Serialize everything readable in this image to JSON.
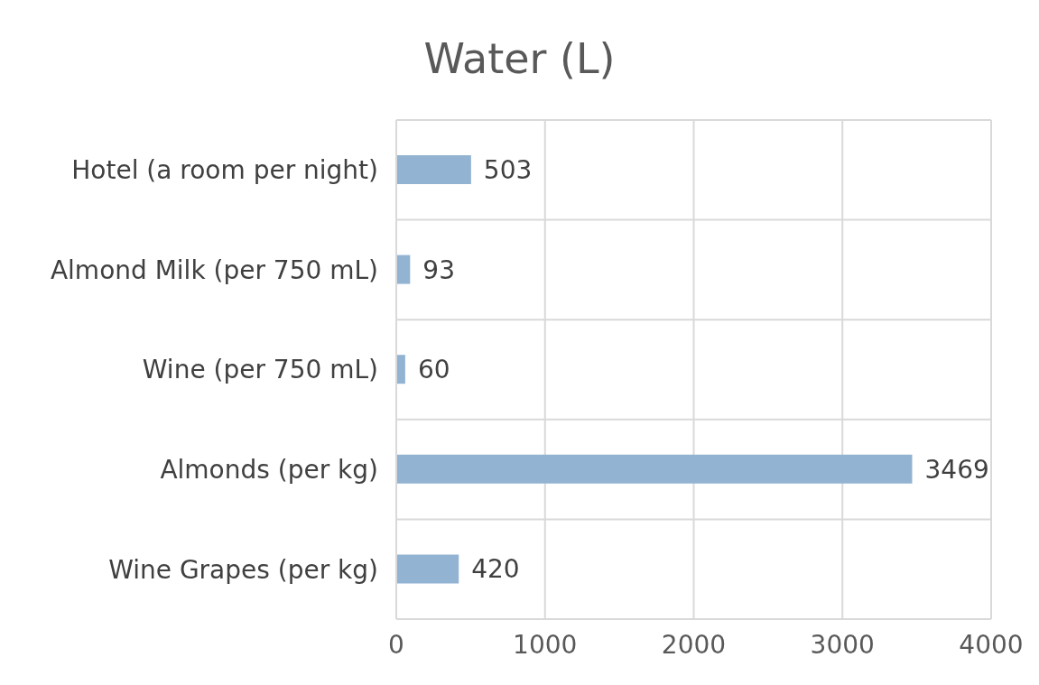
{
  "chart_data": {
    "type": "bar",
    "orientation": "horizontal",
    "title": "Water (L)",
    "categories": [
      "Hotel (a room per night)",
      "Almond Milk (per 750 mL)",
      "Wine (per 750 mL)",
      "Almonds (per kg)",
      "Wine Grapes (per kg)"
    ],
    "values": [
      503,
      93,
      60,
      3469,
      420
    ],
    "color": "#93b3d3",
    "xlim": [
      0,
      4000
    ],
    "xticks": [
      0,
      1000,
      2000,
      3000,
      4000
    ],
    "grid": true,
    "data_labels": true
  }
}
